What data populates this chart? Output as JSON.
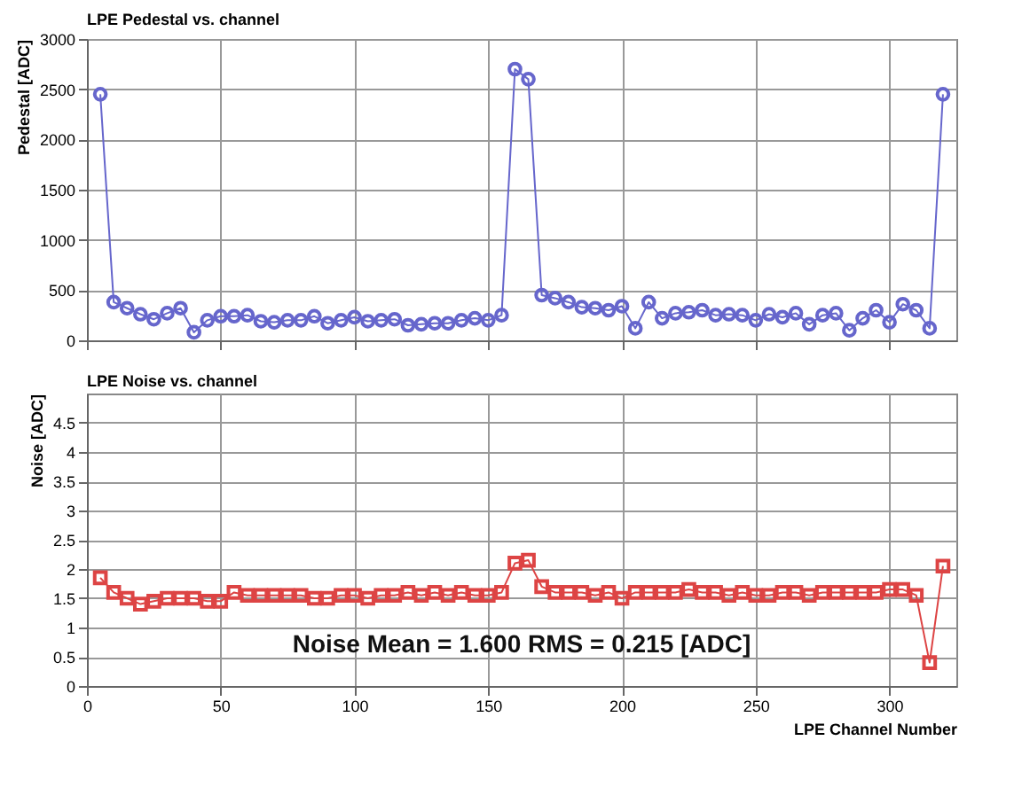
{
  "chart_data": [
    {
      "type": "line",
      "title": "LPE Pedestal vs. channel",
      "ylabel": "Pedestal [ADC]",
      "x": [
        5,
        10,
        15,
        20,
        25,
        30,
        35,
        40,
        45,
        50,
        55,
        60,
        65,
        70,
        75,
        80,
        85,
        90,
        95,
        100,
        105,
        110,
        115,
        120,
        125,
        130,
        135,
        140,
        145,
        150,
        155,
        160,
        165,
        170,
        175,
        180,
        185,
        190,
        195,
        200,
        205,
        210,
        215,
        220,
        225,
        230,
        235,
        240,
        245,
        250,
        255,
        260,
        265,
        270,
        275,
        280,
        285,
        290,
        295,
        300,
        305,
        310,
        315,
        320
      ],
      "series": [
        {
          "color": "#6666cc",
          "values": [
            2450,
            380,
            320,
            260,
            210,
            270,
            320,
            80,
            200,
            240,
            240,
            250,
            190,
            180,
            200,
            200,
            240,
            170,
            200,
            230,
            190,
            200,
            210,
            150,
            160,
            170,
            170,
            200,
            220,
            200,
            250,
            2700,
            2600,
            450,
            420,
            380,
            330,
            320,
            300,
            340,
            120,
            380,
            220,
            270,
            280,
            300,
            250,
            260,
            250,
            200,
            260,
            230,
            270,
            160,
            250,
            270,
            100,
            220,
            300,
            180,
            360,
            300,
            120,
            2450
          ]
        }
      ],
      "xlim": [
        0,
        325
      ],
      "xticks": [
        0,
        50,
        100,
        150,
        200,
        250,
        300
      ],
      "ylim": [
        0,
        3000
      ],
      "yticks": [
        0,
        500,
        1000,
        1500,
        2000,
        2500,
        3000
      ],
      "grid": true,
      "marker": "circle",
      "tick_labels": "y"
    },
    {
      "type": "line",
      "title": "LPE Noise vs. channel",
      "ylabel": "Noise [ADC]",
      "xlabel": "LPE Channel Number",
      "x": [
        5,
        10,
        15,
        20,
        25,
        30,
        35,
        40,
        45,
        50,
        55,
        60,
        65,
        70,
        75,
        80,
        85,
        90,
        95,
        100,
        105,
        110,
        115,
        120,
        125,
        130,
        135,
        140,
        145,
        150,
        155,
        160,
        165,
        170,
        175,
        180,
        185,
        190,
        195,
        200,
        205,
        210,
        215,
        220,
        225,
        230,
        235,
        240,
        245,
        250,
        255,
        260,
        265,
        270,
        275,
        280,
        285,
        290,
        295,
        300,
        305,
        310,
        315,
        320
      ],
      "series": [
        {
          "color": "#dd4444",
          "values": [
            1.85,
            1.6,
            1.5,
            1.4,
            1.45,
            1.5,
            1.5,
            1.5,
            1.45,
            1.45,
            1.6,
            1.55,
            1.55,
            1.55,
            1.55,
            1.55,
            1.5,
            1.5,
            1.55,
            1.55,
            1.5,
            1.55,
            1.55,
            1.6,
            1.55,
            1.6,
            1.55,
            1.6,
            1.55,
            1.55,
            1.6,
            2.1,
            2.15,
            1.7,
            1.6,
            1.6,
            1.6,
            1.55,
            1.6,
            1.5,
            1.6,
            1.6,
            1.6,
            1.6,
            1.65,
            1.6,
            1.6,
            1.55,
            1.6,
            1.55,
            1.55,
            1.6,
            1.6,
            1.55,
            1.6,
            1.6,
            1.6,
            1.6,
            1.6,
            1.65,
            1.65,
            1.55,
            0.4,
            2.05
          ]
        }
      ],
      "xlim": [
        0,
        325
      ],
      "xticks": [
        0,
        50,
        100,
        150,
        200,
        250,
        300
      ],
      "ylim": [
        0,
        5
      ],
      "yticks": [
        0,
        0.5,
        1,
        1.5,
        2,
        2.5,
        3,
        3.5,
        4,
        4.5
      ],
      "grid": true,
      "marker": "square",
      "annotations": [
        "Noise Mean = 1.600  RMS = 0.215 [ADC]"
      ]
    }
  ]
}
